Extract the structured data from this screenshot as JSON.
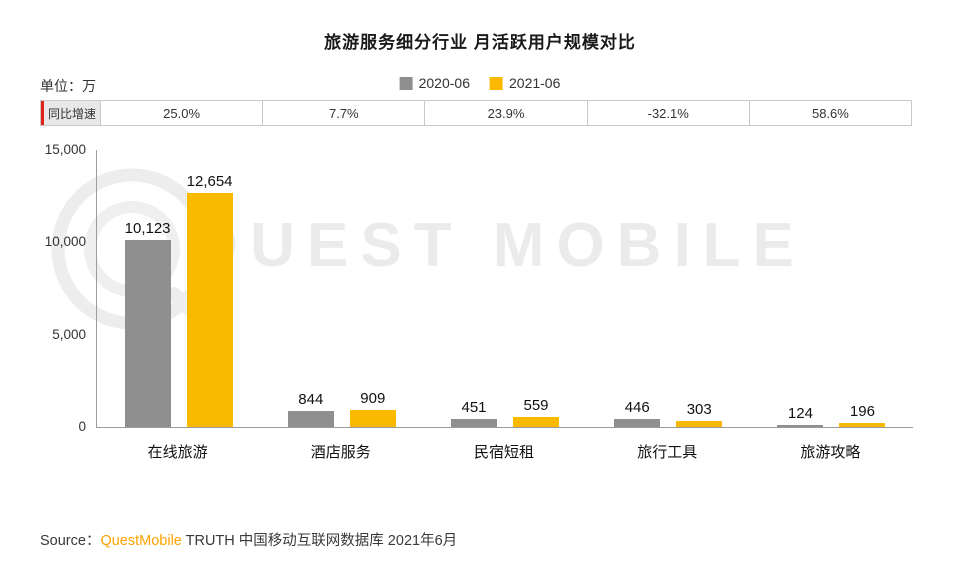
{
  "title": "旅游服务细分行业 月活跃用户规模对比",
  "unit_label": "单位：万",
  "legend": [
    {
      "label": "2020-06",
      "color": "#8f8f8f"
    },
    {
      "label": "2021-06",
      "color": "#fbba00"
    }
  ],
  "growth_row": {
    "label": "同比增速",
    "values": [
      "25.0%",
      "7.7%",
      "23.9%",
      "-32.1%",
      "58.6%"
    ]
  },
  "chart_data": {
    "type": "bar",
    "title": "旅游服务细分行业 月活跃用户规模对比",
    "unit": "万",
    "categories": [
      "在线旅游",
      "酒店服务",
      "民宿短租",
      "旅行工具",
      "旅游攻略"
    ],
    "series": [
      {
        "name": "2020-06",
        "color": "#8f8f8f",
        "values": [
          10123,
          844,
          451,
          446,
          124
        ]
      },
      {
        "name": "2021-06",
        "color": "#fbba00",
        "values": [
          12654,
          909,
          559,
          303,
          196
        ]
      }
    ],
    "yoy_growth": [
      "25.0%",
      "7.7%",
      "23.9%",
      "-32.1%",
      "58.6%"
    ],
    "ylim": [
      0,
      15000
    ],
    "yticks": [
      0,
      5000,
      10000,
      15000
    ],
    "grid": false,
    "legend_position": "top"
  },
  "watermark": "QUEST MOBILE",
  "source": {
    "prefix": "Source：",
    "brand": "QuestMobile",
    "suffix": " TRUTH 中国移动互联网数据库 2021年6月",
    "brand_color": "#ffa200"
  }
}
